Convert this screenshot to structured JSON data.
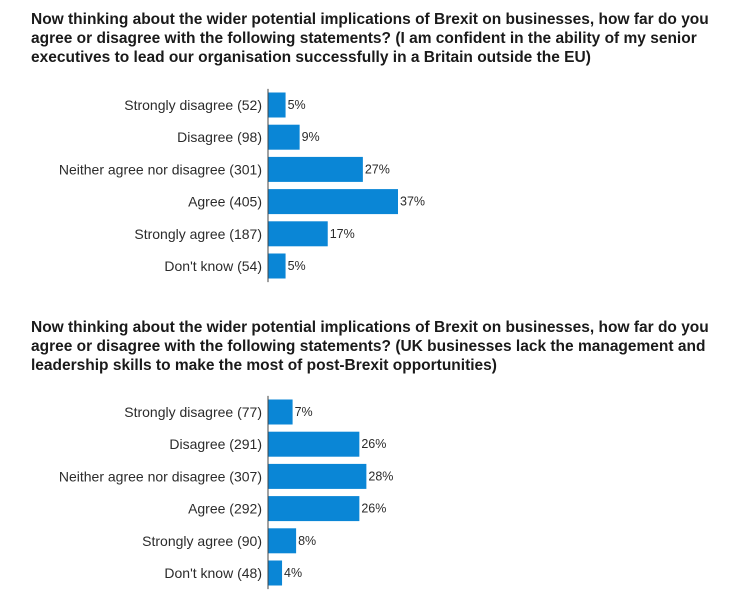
{
  "chart_data": [
    {
      "type": "bar",
      "orientation": "horizontal",
      "title": "Now thinking about the wider potential implications of Brexit on businesses, how far do you agree or disagree with the following statements?  (I am confident in the ability of my senior executives to lead our organisation successfully in a Britain outside the EU)",
      "categories": [
        "Strongly disagree (52)",
        "Disagree (98)",
        "Neither agree nor disagree (301)",
        "Agree (405)",
        "Strongly agree (187)",
        "Don't know (54)"
      ],
      "values": [
        5,
        9,
        27,
        37,
        17,
        5
      ],
      "value_labels": [
        "5%",
        "9%",
        "27%",
        "37%",
        "17%",
        "5%"
      ],
      "bar_color": "#0a86d6",
      "grid": false,
      "legend": "none"
    },
    {
      "type": "bar",
      "orientation": "horizontal",
      "title": "Now thinking about the wider potential implications of Brexit on businesses, how far do you agree or disagree with the following statements?  (UK businesses lack the management and leadership skills to make the most of post-Brexit opportunities)",
      "categories": [
        "Strongly disagree (77)",
        "Disagree (291)",
        "Neither agree nor disagree (307)",
        "Agree (292)",
        "Strongly agree (90)",
        "Don't know (48)"
      ],
      "values": [
        7,
        26,
        28,
        26,
        8,
        4
      ],
      "value_labels": [
        "7%",
        "26%",
        "28%",
        "26%",
        "8%",
        "4%"
      ],
      "bar_color": "#0a86d6",
      "grid": false,
      "legend": "none"
    }
  ]
}
